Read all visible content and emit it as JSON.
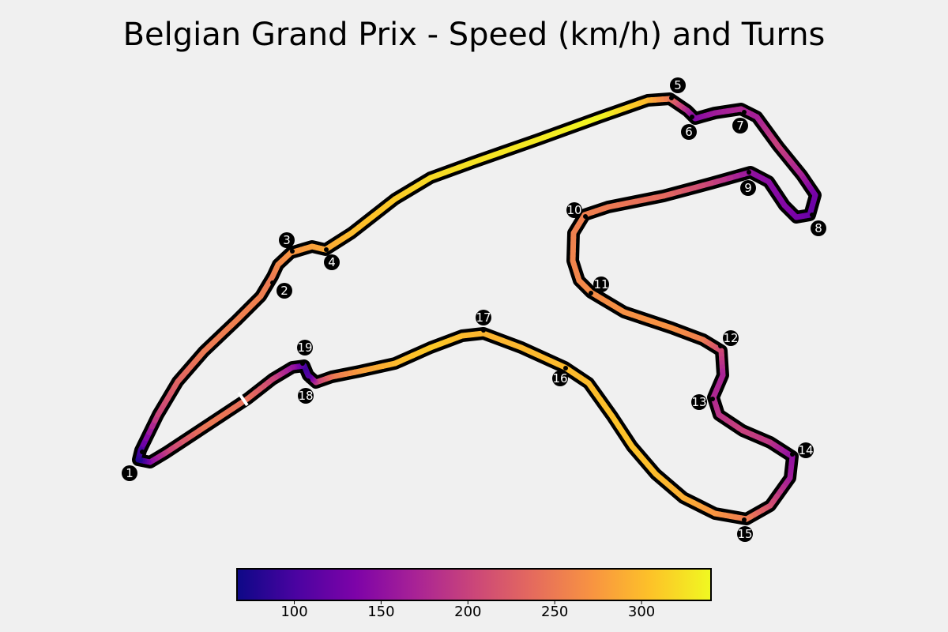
{
  "chart_data": {
    "type": "line",
    "title": "Belgian Grand Prix - Speed (km/h) and Turns",
    "xlabel": "",
    "ylabel": "",
    "colormap": "plasma",
    "colorbar": {
      "orientation": "horizontal",
      "placement": "bottom",
      "range": [
        67,
        340
      ],
      "ticks": [
        100,
        150,
        200,
        250,
        300
      ],
      "tick_labels": [
        "100",
        "150",
        "200",
        "250",
        "300"
      ]
    },
    "turns": [
      {
        "number": "1",
        "speed": 75
      },
      {
        "number": "2",
        "speed": 250
      },
      {
        "number": "3",
        "speed": 270
      },
      {
        "number": "4",
        "speed": 285
      },
      {
        "number": "5",
        "speed": 180
      },
      {
        "number": "6",
        "speed": 140
      },
      {
        "number": "7",
        "speed": 175
      },
      {
        "number": "8",
        "speed": 130
      },
      {
        "number": "9",
        "speed": 150
      },
      {
        "number": "10",
        "speed": 255
      },
      {
        "number": "11",
        "speed": 265
      },
      {
        "number": "12",
        "speed": 210
      },
      {
        "number": "13",
        "speed": 185
      },
      {
        "number": "14",
        "speed": 150
      },
      {
        "number": "15",
        "speed": 250
      },
      {
        "number": "16",
        "speed": 300
      },
      {
        "number": "17",
        "speed": 295
      },
      {
        "number": "18",
        "speed": 110
      },
      {
        "number": "19",
        "speed": 95
      }
    ]
  }
}
